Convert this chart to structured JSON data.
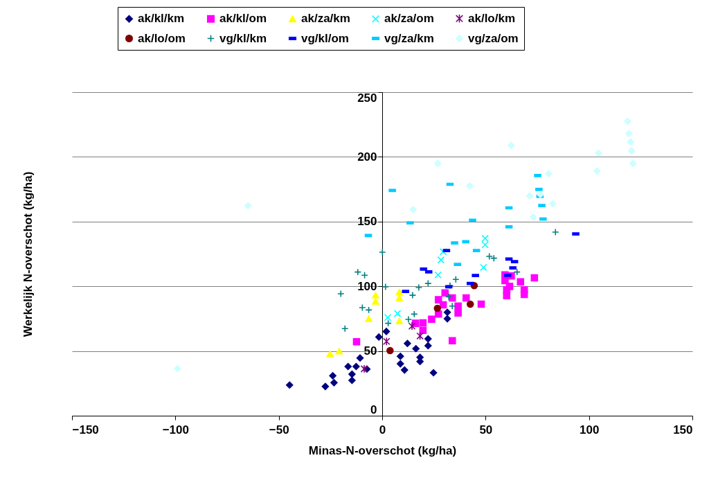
{
  "chart_data": {
    "type": "scatter",
    "xlabel": "Minas-N-overschot (kg/ha)",
    "ylabel": "Werkelijk N-overschot (kg/ha)",
    "xlim": [
      -150,
      150
    ],
    "xticks": [
      -150,
      -100,
      -50,
      0,
      50,
      100,
      150
    ],
    "ylim": [
      0,
      250
    ],
    "yticks": [
      0,
      50,
      100,
      150,
      200,
      250
    ],
    "grid": "y",
    "legend": "top",
    "series": [
      {
        "name": "ak/kl/km",
        "color": "#000080",
        "marker": "diamond",
        "x": [
          -44.8,
          -27.5,
          -23.3,
          -23.9,
          -16.5,
          -12.6,
          -14.6,
          -14.6,
          -10.7,
          -7.4,
          -1.6,
          2.0,
          12.2,
          16.3,
          8.8,
          8.8,
          10.8,
          18.3,
          18.3,
          22.2,
          22.2,
          24.8,
          31.5,
          31.5
        ],
        "values": [
          23.7,
          22.6,
          25.5,
          30.9,
          38.0,
          38.0,
          32.1,
          27.3,
          44.6,
          36.0,
          60.8,
          65.1,
          55.8,
          51.8,
          45.9,
          40.1,
          35.3,
          45.1,
          41.9,
          59.4,
          54.1,
          33.2,
          74.9,
          79.9
        ]
      },
      {
        "name": "ak/kl/om",
        "color": "#ff00ff",
        "marker": "square",
        "x": [
          -12.4,
          30.4,
          27.2,
          29.5,
          33.9,
          36.7,
          36.7,
          40.6,
          47.9,
          27.2,
          23.9,
          19.7,
          16.1,
          19.7,
          33.9,
          59.4,
          62.4,
          59.4,
          61.6,
          60.2,
          60.2,
          66.9,
          68.7,
          68.7,
          73.6
        ],
        "values": [
          57.1,
          94.9,
          89.6,
          85.7,
          91.0,
          84.7,
          79.4,
          91.0,
          86.2,
          78.6,
          74.6,
          71.7,
          71.4,
          66.0,
          58.0,
          108.8,
          108.0,
          104.4,
          99.9,
          97.3,
          92.8,
          103.5,
          97.3,
          93.7,
          106.5
        ]
      },
      {
        "name": "ak/za/km",
        "color": "#ffff00",
        "marker": "triangle",
        "x": [
          -3.2,
          -3.2,
          -6.5,
          -25.2,
          -20.8,
          8.3,
          8.3,
          8.3
        ],
        "values": [
          93.1,
          88.3,
          74.9,
          47.8,
          49.9,
          95.5,
          91.0,
          73.2
        ]
      },
      {
        "name": "ak/za/om",
        "color": "#00ffff",
        "marker": "x",
        "x": [
          2.7,
          7.4,
          27.0,
          28.4,
          29.5,
          49.0,
          49.8,
          49.8
        ],
        "values": [
          75.9,
          78.9,
          108.8,
          120.4,
          126.7,
          114.6,
          137.0,
          132.1
        ]
      },
      {
        "name": "ak/lo/km",
        "color": "#800080",
        "marker": "cross",
        "x": [
          -8.7,
          2.1,
          14.4,
          18.3
        ],
        "values": [
          36.2,
          57.4,
          69.2,
          61.6
        ]
      },
      {
        "name": "ak/lo/om",
        "color": "#800000",
        "marker": "circle",
        "x": [
          3.8,
          26.7,
          42.6,
          44.5
        ],
        "values": [
          50.3,
          83.0,
          86.2,
          100.5
        ]
      },
      {
        "name": "vg/kl/km",
        "color": "#008080",
        "marker": "plus",
        "x": [
          0.1,
          -11.8,
          -8.5,
          -20.0,
          -9.6,
          -6.5,
          -18.0,
          1.6,
          2.9,
          12.7,
          15.5,
          14.7,
          17.7,
          22.2,
          32.8,
          35.6,
          32.2,
          33.9,
          51.8,
          54.0,
          83.8,
          65.2
        ],
        "values": [
          126.3,
          111.0,
          108.5,
          94.2,
          83.5,
          81.7,
          67.3,
          99.6,
          71.4,
          74.4,
          78.5,
          93.1,
          99.0,
          102.2,
          100.5,
          105.3,
          91.9,
          84.7,
          123.1,
          121.7,
          141.9,
          111.0
        ]
      },
      {
        "name": "vg/kl/om",
        "color": "#0000ff",
        "x": [
          31.1,
          20.0,
          22.5,
          45.1,
          42.6,
          32.2,
          11.3,
          61.3,
          64.0,
          63.2,
          60.7,
          93.6
        ],
        "values": [
          127.6,
          113.3,
          111.2,
          108.3,
          102.2,
          99.6,
          96.0,
          121.0,
          119.0,
          114.2,
          108.5,
          140.4
        ]
      },
      {
        "name": "vg/za/km",
        "color": "#00ccff",
        "x": [
          -6.7,
          4.9,
          13.5,
          32.8,
          43.7,
          35.0,
          40.4,
          61.3,
          61.3,
          75.2,
          75.8,
          76.3,
          77.2,
          77.8,
          45.6,
          36.4
        ],
        "values": [
          139.2,
          174.0,
          149.0,
          178.8,
          151.0,
          133.5,
          134.4,
          160.6,
          146.0,
          185.6,
          174.9,
          169.5,
          162.4,
          152.0,
          127.6,
          116.9
        ]
      },
      {
        "name": "vg/za/om",
        "color": "#ccffff",
        "marker": "diamond",
        "x": [
          -99,
          -64.9,
          26.9,
          15.0,
          42.3,
          62.4,
          80.5,
          71.3,
          76.5,
          82.5,
          73.0,
          104.6,
          103.9,
          118.7,
          119.3,
          120.1,
          120.6,
          121.3
        ],
        "values": [
          36.4,
          162.2,
          194.9,
          159.2,
          177.6,
          208.8,
          187.0,
          169.9,
          170.9,
          163.8,
          153.5,
          202.9,
          189.1,
          227.5,
          218.0,
          211.5,
          204.7,
          194.9
        ]
      }
    ]
  }
}
